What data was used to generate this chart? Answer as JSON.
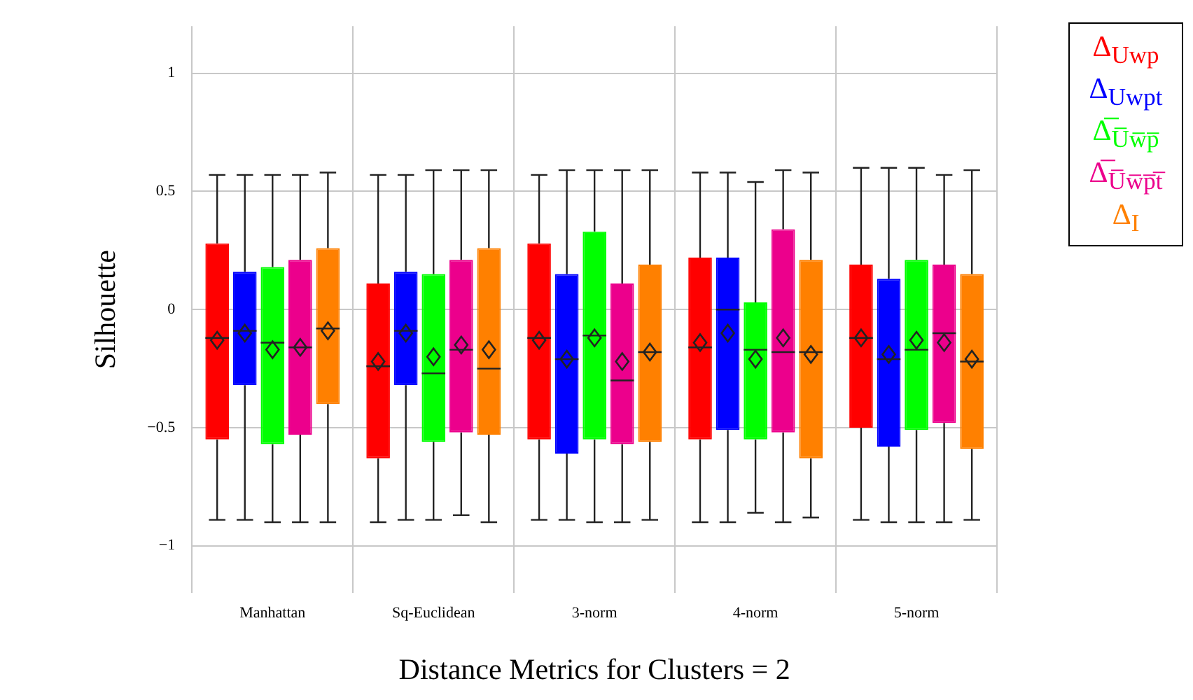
{
  "chart_data": {
    "type": "box",
    "xlabel": "Distance Metrics for Clusters = 2",
    "ylabel": "Silhouette",
    "categories": [
      "Manhattan",
      "Sq-Euclidean",
      "3-norm",
      "4-norm",
      "5-norm"
    ],
    "ylim": [
      -1.2,
      1.2
    ],
    "yticks": [
      {
        "value": -1,
        "label": "−1"
      },
      {
        "value": -0.5,
        "label": "−0.5"
      },
      0,
      0.5,
      1
    ],
    "grid": true,
    "legend": "top right",
    "series": [
      {
        "name": "Δ$_{Uwp}$",
        "color": "#ff0000",
        "boxes": [
          {
            "low": -0.89,
            "q1": -0.55,
            "median": -0.12,
            "q3": 0.28,
            "high": 0.57,
            "mean": -0.13
          },
          {
            "low": -0.9,
            "q1": -0.63,
            "median": -0.24,
            "q3": 0.11,
            "high": 0.57,
            "mean": -0.22
          },
          {
            "low": -0.89,
            "q1": -0.55,
            "median": -0.12,
            "q3": 0.28,
            "high": 0.57,
            "mean": -0.13
          },
          {
            "low": -0.9,
            "q1": -0.55,
            "median": -0.16,
            "q3": 0.22,
            "high": 0.58,
            "mean": -0.14
          },
          {
            "low": -0.89,
            "q1": -0.5,
            "median": -0.12,
            "q3": 0.19,
            "high": 0.6,
            "mean": -0.12
          }
        ]
      },
      {
        "name": "Δ$_{Uwpt}$",
        "color": "#0000ff",
        "boxes": [
          {
            "low": -0.89,
            "q1": -0.32,
            "median": -0.09,
            "q3": 0.16,
            "high": 0.57,
            "mean": -0.1
          },
          {
            "low": -0.89,
            "q1": -0.32,
            "median": -0.09,
            "q3": 0.16,
            "high": 0.57,
            "mean": -0.1
          },
          {
            "low": -0.89,
            "q1": -0.61,
            "median": -0.21,
            "q3": 0.15,
            "high": 0.59,
            "mean": -0.21
          },
          {
            "low": -0.9,
            "q1": -0.51,
            "median": 0.0,
            "q3": 0.22,
            "high": 0.58,
            "mean": -0.1
          },
          {
            "low": -0.9,
            "q1": -0.58,
            "median": -0.21,
            "q3": 0.13,
            "high": 0.6,
            "mean": -0.19
          }
        ]
      },
      {
        "name": "Δ̅$_{U̅w̅p̅}$",
        "color": "#00ff00",
        "boxes": [
          {
            "low": -0.9,
            "q1": -0.57,
            "median": -0.14,
            "q3": 0.18,
            "high": 0.57,
            "mean": -0.17
          },
          {
            "low": -0.89,
            "q1": -0.56,
            "median": -0.27,
            "q3": 0.15,
            "high": 0.59,
            "mean": -0.2
          },
          {
            "low": -0.9,
            "q1": -0.55,
            "median": -0.11,
            "q3": 0.33,
            "high": 0.59,
            "mean": -0.12
          },
          {
            "low": -0.86,
            "q1": -0.55,
            "median": -0.17,
            "q3": 0.03,
            "high": 0.54,
            "mean": -0.21
          },
          {
            "low": -0.9,
            "q1": -0.51,
            "median": -0.17,
            "q3": 0.21,
            "high": 0.6,
            "mean": -0.13
          }
        ]
      },
      {
        "name": "Δ̅$_{U̅w̅p̅t̅}$",
        "color": "#ec008c",
        "boxes": [
          {
            "low": -0.9,
            "q1": -0.53,
            "median": -0.16,
            "q3": 0.21,
            "high": 0.57,
            "mean": -0.16
          },
          {
            "low": -0.87,
            "q1": -0.52,
            "median": -0.17,
            "q3": 0.21,
            "high": 0.59,
            "mean": -0.15
          },
          {
            "low": -0.9,
            "q1": -0.57,
            "median": -0.3,
            "q3": 0.11,
            "high": 0.59,
            "mean": -0.22
          },
          {
            "low": -0.9,
            "q1": -0.52,
            "median": -0.18,
            "q3": 0.34,
            "high": 0.59,
            "mean": -0.12
          },
          {
            "low": -0.9,
            "q1": -0.48,
            "median": -0.1,
            "q3": 0.19,
            "high": 0.57,
            "mean": -0.14
          }
        ]
      },
      {
        "name": "Δ$_{I}$",
        "color": "#ff8000",
        "boxes": [
          {
            "low": -0.9,
            "q1": -0.4,
            "median": -0.08,
            "q3": 0.26,
            "high": 0.58,
            "mean": -0.09
          },
          {
            "low": -0.9,
            "q1": -0.53,
            "median": -0.25,
            "q3": 0.26,
            "high": 0.59,
            "mean": -0.17
          },
          {
            "low": -0.89,
            "q1": -0.56,
            "median": -0.18,
            "q3": 0.19,
            "high": 0.59,
            "mean": -0.18
          },
          {
            "low": -0.88,
            "q1": -0.63,
            "median": -0.18,
            "q3": 0.21,
            "high": 0.58,
            "mean": -0.19
          },
          {
            "low": -0.89,
            "q1": -0.59,
            "median": -0.22,
            "q3": 0.15,
            "high": 0.59,
            "mean": -0.21
          }
        ]
      }
    ]
  }
}
